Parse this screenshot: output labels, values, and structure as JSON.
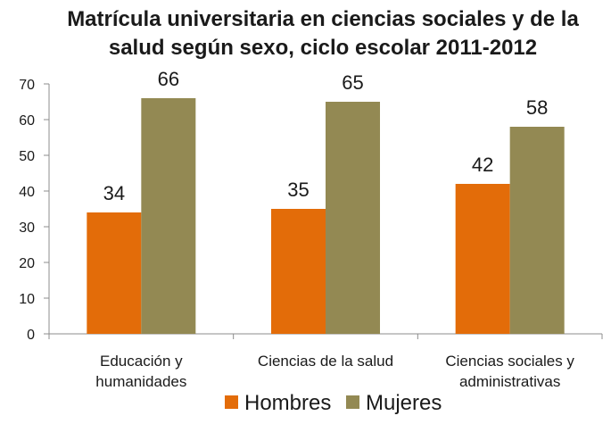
{
  "chart_data": {
    "type": "bar",
    "title": [
      "Matrícula universitaria en ciencias sociales y de la",
      "salud según sexo, ciclo escolar 2011-2012"
    ],
    "categories": [
      [
        "Educación y",
        "humanidades"
      ],
      [
        "Ciencias de la salud"
      ],
      [
        "Ciencias sociales y",
        "administrativas"
      ]
    ],
    "series": [
      {
        "name": "Hombres",
        "values": [
          34,
          35,
          42
        ],
        "color": "#e36c09"
      },
      {
        "name": "Mujeres",
        "values": [
          66,
          65,
          58
        ],
        "color": "#938953"
      }
    ],
    "ylim": [
      0,
      70
    ],
    "yticks": [
      "0",
      "10",
      "20",
      "30",
      "40",
      "50",
      "60",
      "70"
    ],
    "grid": false,
    "legend": "bottom"
  }
}
